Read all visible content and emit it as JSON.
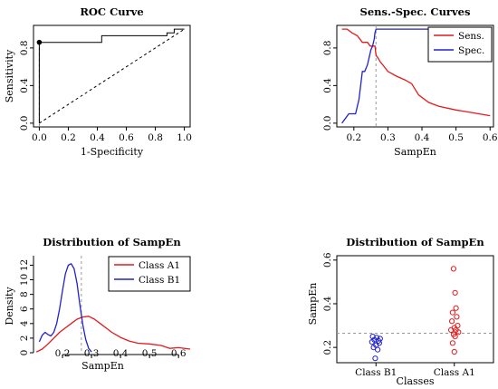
{
  "chart_data": [
    {
      "id": "roc",
      "type": "line",
      "title": "ROC Curve",
      "xlabel": "1-Specificity",
      "ylabel": "Sensitivity",
      "xlim": [
        0,
        1
      ],
      "ylim": [
        0,
        1
      ],
      "xticks": [
        0.0,
        0.2,
        0.4,
        0.6,
        0.8,
        1.0
      ],
      "yticks": [
        0.0,
        0.4,
        0.8
      ],
      "series": [
        {
          "style": "step",
          "color": "#000000",
          "x": [
            0.0,
            0.0,
            0.43,
            0.43,
            0.88,
            0.88,
            0.93,
            0.93,
            1.0
          ],
          "y": [
            0.0,
            0.86,
            0.86,
            0.93,
            0.93,
            0.96,
            0.96,
            1.0,
            1.0
          ]
        }
      ],
      "reference_line": {
        "x": [
          0,
          1
        ],
        "y": [
          0,
          1
        ],
        "style": "dashed"
      },
      "optimal_point": {
        "x": 0.0,
        "y": 0.86
      },
      "grid": false
    },
    {
      "id": "sens_spec",
      "type": "line",
      "title": "Sens.-Spec. Curves",
      "xlabel": "SampEn",
      "ylabel": "",
      "xlim": [
        0.15,
        0.61
      ],
      "ylim": [
        0,
        1
      ],
      "xticks": [
        0.2,
        0.3,
        0.4,
        0.5,
        0.6
      ],
      "yticks": [
        0.0,
        0.4,
        0.8
      ],
      "legend": "top-right",
      "cutoff": 0.265,
      "series": [
        {
          "name": "Sens.",
          "color": "#e41a1c",
          "x": [
            0.165,
            0.18,
            0.195,
            0.21,
            0.225,
            0.232,
            0.24,
            0.248,
            0.255,
            0.262,
            0.265,
            0.27,
            0.278,
            0.285,
            0.3,
            0.325,
            0.35,
            0.37,
            0.39,
            0.42,
            0.45,
            0.5,
            0.55,
            0.6
          ],
          "y": [
            1.0,
            1.0,
            0.96,
            0.93,
            0.86,
            0.86,
            0.86,
            0.82,
            0.82,
            0.82,
            0.72,
            0.7,
            0.65,
            0.62,
            0.55,
            0.5,
            0.46,
            0.42,
            0.3,
            0.22,
            0.18,
            0.14,
            0.11,
            0.08
          ]
        },
        {
          "name": "Spec.",
          "color": "#2222cc",
          "x": [
            0.165,
            0.185,
            0.205,
            0.215,
            0.225,
            0.232,
            0.24,
            0.245,
            0.25,
            0.255,
            0.26,
            0.262,
            0.265,
            0.6
          ],
          "y": [
            0.0,
            0.1,
            0.1,
            0.25,
            0.55,
            0.55,
            0.62,
            0.7,
            0.78,
            0.82,
            0.9,
            0.96,
            1.0,
            1.0
          ]
        }
      ],
      "grid": false
    },
    {
      "id": "density",
      "type": "line",
      "title": "Distribution of SampEn",
      "xlabel": "SampEn",
      "ylabel": "Density",
      "xlim": [
        0.1,
        0.64
      ],
      "ylim": [
        0,
        13
      ],
      "xticks": [
        0.2,
        0.3,
        0.4,
        0.5,
        0.6
      ],
      "yticks": [
        0,
        2,
        4,
        6,
        8,
        10,
        12
      ],
      "legend": "top-right",
      "cutoff": 0.265,
      "series": [
        {
          "name": "Class A1",
          "color": "#e41a1c",
          "x": [
            0.11,
            0.13,
            0.15,
            0.17,
            0.19,
            0.21,
            0.23,
            0.25,
            0.27,
            0.29,
            0.31,
            0.33,
            0.35,
            0.37,
            0.4,
            0.43,
            0.46,
            0.5,
            0.54,
            0.57,
            0.6,
            0.64
          ],
          "y": [
            0.1,
            0.5,
            1.2,
            2.0,
            2.8,
            3.4,
            4.0,
            4.6,
            4.9,
            5.0,
            4.6,
            4.0,
            3.4,
            2.8,
            2.1,
            1.6,
            1.3,
            1.2,
            1.0,
            0.6,
            0.7,
            0.5
          ]
        },
        {
          "name": "Class B1",
          "color": "#2222cc",
          "x": [
            0.12,
            0.13,
            0.14,
            0.15,
            0.16,
            0.17,
            0.18,
            0.19,
            0.2,
            0.21,
            0.22,
            0.23,
            0.24,
            0.25,
            0.26,
            0.27,
            0.28,
            0.29,
            0.3
          ],
          "y": [
            1.5,
            2.4,
            2.8,
            2.5,
            2.3,
            2.8,
            4.0,
            6.0,
            8.5,
            10.8,
            12.0,
            12.2,
            11.5,
            9.5,
            6.5,
            3.8,
            1.8,
            0.6,
            0.1
          ]
        }
      ],
      "grid": false
    },
    {
      "id": "strip",
      "type": "scatter",
      "title": "Distribution of SampEn",
      "xlabel": "Classes",
      "ylabel": "SampEn",
      "categories": [
        "Class B1",
        "Class A1"
      ],
      "ylim": [
        0.13,
        0.62
      ],
      "yticks": [
        0.2,
        0.4,
        0.6
      ],
      "cutoff": 0.265,
      "series": [
        {
          "name": "Class B1",
          "color": "#2222cc",
          "category": "Class B1",
          "values": [
            0.25,
            0.245,
            0.24,
            0.235,
            0.23,
            0.225,
            0.22,
            0.21,
            0.2,
            0.19,
            0.15
          ],
          "jitter": [
            -0.2,
            0.05,
            0.25,
            -0.1,
            0.15,
            -0.25,
            0.2,
            0.0,
            -0.15,
            0.1,
            -0.05
          ]
        },
        {
          "name": "Class A1",
          "color": "#e41a1c",
          "category": "Class A1",
          "values": [
            0.56,
            0.45,
            0.38,
            0.36,
            0.34,
            0.32,
            0.3,
            0.29,
            0.28,
            0.28,
            0.27,
            0.26,
            0.25,
            0.22,
            0.18
          ],
          "jitter": [
            -0.05,
            0.05,
            0.1,
            -0.1,
            0.15,
            -0.15,
            0.2,
            0.0,
            -0.2,
            0.1,
            0.25,
            -0.05,
            0.05,
            -0.1,
            0.0
          ]
        }
      ],
      "grid": false
    }
  ]
}
